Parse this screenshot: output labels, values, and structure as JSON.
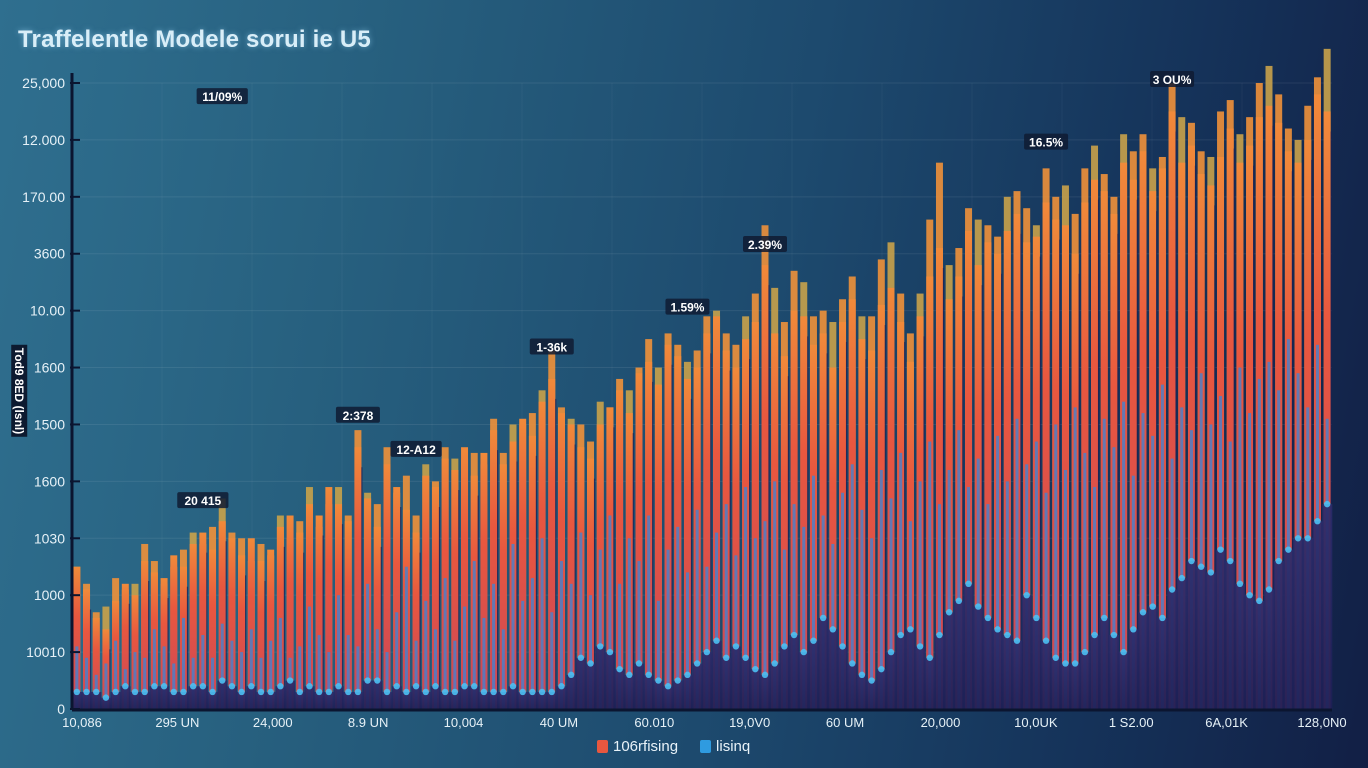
{
  "chart_data": {
    "type": "bar",
    "title": "Traffelentle Modele sorui ie U5",
    "xlabel": "",
    "ylabel": "Tod9 8ED (lsnl)",
    "y_tick_labels": [
      "0",
      "10010",
      "1000",
      "1030",
      "1600",
      "1500",
      "1600",
      "10.00",
      "3600",
      "170.00",
      "12.000",
      "25,000"
    ],
    "ylim": [
      0,
      11
    ],
    "x_tick_labels": [
      "10,086",
      "295 UN",
      "24,000",
      "8.9 UN",
      "10,004",
      "40 UM",
      "60.010",
      "19,0V0",
      "60 UM",
      "20,000",
      "10,0UK",
      "1 S2.00",
      "6A,01K",
      "128,0N0"
    ],
    "grid": true,
    "legend": {
      "position": "bottom-center",
      "entries": [
        {
          "label": "106rfising",
          "color": "#e8573f"
        },
        {
          "label": "lisinq",
          "color": "#2f9be0"
        }
      ]
    },
    "annotations": [
      {
        "text": "11/09%",
        "x_index": 15,
        "y": 10.7
      },
      {
        "text": "20 415",
        "x_index": 13,
        "y": 3.6
      },
      {
        "text": "2:378",
        "x_index": 29,
        "y": 5.1
      },
      {
        "text": "12-A12",
        "x_index": 35,
        "y": 4.5
      },
      {
        "text": "1-36k",
        "x_index": 49,
        "y": 6.3
      },
      {
        "text": "1.59%",
        "x_index": 63,
        "y": 7.0
      },
      {
        "text": "2.39%",
        "x_index": 71,
        "y": 8.1
      },
      {
        "text": "16.5%",
        "x_index": 100,
        "y": 9.9
      },
      {
        "text": "3 OU%",
        "x_index": 113,
        "y": 11.0
      }
    ],
    "series": [
      {
        "name": "106rfising",
        "color": "#e8573f",
        "values": [
          2.5,
          2.1,
          1.6,
          1.4,
          1.9,
          2.2,
          2.0,
          2.6,
          2.4,
          2.3,
          2.7,
          2.5,
          2.9,
          3.1,
          2.8,
          3.3,
          3.0,
          2.7,
          3.0,
          2.6,
          2.8,
          3.2,
          3.4,
          3.1,
          3.6,
          3.4,
          3.9,
          3.6,
          3.3,
          4.6,
          3.7,
          3.2,
          4.3,
          3.9,
          3.5,
          3.1,
          4.1,
          3.9,
          4.4,
          4.2,
          4.6,
          4.1,
          4.5,
          4.9,
          4.3,
          4.7,
          5.1,
          4.8,
          5.4,
          5.8,
          5.2,
          5.0,
          4.6,
          4.4,
          5.0,
          5.3,
          5.6,
          5.2,
          5.9,
          6.1,
          5.7,
          6.4,
          6.2,
          5.8,
          6.0,
          6.6,
          6.9,
          6.3,
          6.0,
          6.5,
          6.8,
          7.8,
          6.6,
          6.2,
          7.0,
          6.9,
          6.4,
          6.6,
          6.0,
          6.8,
          7.2,
          6.5,
          6.3,
          7.1,
          7.4,
          6.8,
          6.1,
          6.9,
          7.6,
          8.1,
          7.2,
          7.6,
          8.4,
          7.8,
          8.2,
          8.0,
          8.4,
          8.7,
          8.2,
          8.3,
          8.9,
          8.6,
          8.5,
          8.0,
          8.9,
          9.3,
          9.1,
          8.7,
          9.6,
          9.3,
          9.8,
          9.1,
          9.5,
          10.5,
          9.6,
          9.9,
          9.4,
          9.2,
          9.7,
          10.2,
          9.6,
          9.9,
          10.4,
          10.6,
          10.3,
          9.8,
          9.6,
          10.0,
          10.8,
          10.5
        ],
        "highlight_values": [
          2.5,
          2.2,
          1.7,
          1.8,
          2.3,
          2.1,
          2.2,
          2.9,
          2.6,
          2.2,
          2.5,
          2.8,
          3.1,
          2.9,
          3.2,
          3.7,
          3.1,
          3.0,
          2.6,
          2.9,
          2.7,
          3.4,
          3.0,
          3.3,
          3.9,
          3.2,
          3.6,
          3.9,
          3.4,
          4.9,
          3.8,
          3.6,
          4.6,
          3.8,
          4.1,
          3.4,
          4.3,
          4.0,
          4.6,
          4.4,
          4.4,
          4.5,
          4.3,
          5.1,
          4.5,
          5.0,
          5.0,
          5.2,
          5.6,
          6.3,
          5.3,
          5.1,
          5.0,
          4.7,
          5.4,
          5.3,
          5.8,
          5.6,
          6.0,
          6.5,
          6.0,
          6.6,
          6.4,
          6.1,
          6.3,
          6.9,
          7.0,
          6.6,
          6.4,
          6.9,
          7.3,
          8.5,
          7.4,
          6.8,
          7.7,
          7.5,
          6.9,
          7.0,
          6.8,
          7.2,
          7.6,
          6.9,
          6.9,
          7.9,
          8.2,
          7.3,
          6.6,
          7.3,
          8.6,
          9.6,
          7.8,
          8.1,
          8.8,
          8.6,
          8.5,
          8.3,
          9.0,
          9.1,
          8.8,
          8.5,
          9.5,
          9.0,
          9.2,
          8.7,
          9.5,
          9.9,
          9.4,
          9.0,
          10.1,
          9.8,
          10.1,
          9.5,
          9.7,
          11.0,
          10.4,
          10.3,
          9.8,
          9.7,
          10.5,
          10.7,
          10.1,
          10.4,
          11.0,
          11.3,
          10.8,
          10.2,
          10.0,
          10.6,
          11.1,
          11.6
        ]
      },
      {
        "name": "lisinq",
        "color": "#2f9be0",
        "values": [
          0.3,
          0.3,
          0.3,
          0.2,
          0.3,
          0.4,
          0.3,
          0.3,
          0.4,
          0.4,
          0.3,
          0.3,
          0.4,
          0.4,
          0.3,
          0.5,
          0.4,
          0.3,
          0.4,
          0.3,
          0.3,
          0.4,
          0.5,
          0.3,
          0.4,
          0.3,
          0.3,
          0.4,
          0.3,
          0.3,
          0.5,
          0.5,
          0.3,
          0.4,
          0.3,
          0.4,
          0.3,
          0.4,
          0.3,
          0.3,
          0.4,
          0.4,
          0.3,
          0.3,
          0.3,
          0.4,
          0.3,
          0.3,
          0.3,
          0.3,
          0.4,
          0.6,
          0.9,
          0.8,
          1.1,
          1.0,
          0.7,
          0.6,
          0.8,
          0.6,
          0.5,
          0.4,
          0.5,
          0.6,
          0.8,
          1.0,
          1.2,
          0.9,
          1.1,
          0.9,
          0.7,
          0.6,
          0.8,
          1.1,
          1.3,
          1.0,
          1.2,
          1.6,
          1.4,
          1.1,
          0.8,
          0.6,
          0.5,
          0.7,
          1.0,
          1.3,
          1.4,
          1.1,
          0.9,
          1.3,
          1.7,
          1.9,
          2.2,
          1.8,
          1.6,
          1.4,
          1.3,
          1.2,
          2.0,
          1.6,
          1.2,
          0.9,
          0.8,
          0.8,
          1.0,
          1.3,
          1.6,
          1.3,
          1.0,
          1.4,
          1.7,
          1.8,
          1.6,
          2.1,
          2.3,
          2.6,
          2.5,
          2.4,
          2.8,
          2.6,
          2.2,
          2.0,
          1.9,
          2.1,
          2.6,
          2.8,
          3.0,
          3.0,
          3.3,
          3.6
        ],
        "spike_values": [
          1.1,
          0.9,
          0.6,
          0.8,
          1.2,
          0.7,
          1.0,
          0.9,
          1.4,
          1.1,
          0.8,
          1.6,
          0.9,
          1.3,
          0.9,
          1.5,
          1.2,
          1.0,
          1.4,
          0.9,
          1.2,
          1.6,
          0.9,
          1.1,
          1.8,
          1.3,
          1.0,
          2.0,
          1.3,
          1.1,
          2.2,
          1.4,
          1.0,
          1.7,
          2.5,
          1.2,
          1.9,
          1.4,
          2.3,
          1.2,
          1.8,
          2.6,
          1.6,
          2.2,
          1.4,
          2.9,
          1.9,
          2.3,
          3.0,
          1.7,
          2.6,
          2.2,
          3.1,
          2.0,
          2.8,
          3.4,
          2.2,
          3.0,
          2.6,
          3.4,
          1.9,
          2.8,
          3.2,
          2.4,
          3.5,
          2.5,
          3.1,
          3.6,
          2.7,
          3.9,
          3.0,
          3.3,
          4.0,
          2.8,
          3.6,
          3.2,
          4.1,
          3.4,
          2.9,
          3.8,
          4.3,
          3.5,
          3.0,
          4.2,
          3.7,
          4.5,
          3.3,
          4.0,
          4.7,
          3.6,
          4.2,
          4.9,
          3.9,
          4.4,
          3.6,
          4.8,
          4.0,
          5.1,
          4.3,
          4.7,
          3.8,
          5.0,
          4.2,
          5.3,
          4.5,
          3.9,
          5.1,
          4.6,
          5.4,
          4.1,
          5.2,
          4.8,
          5.7,
          4.4,
          5.3,
          4.9,
          5.9,
          5.0,
          5.5,
          4.7,
          6.0,
          5.2,
          5.8,
          6.1,
          5.6,
          6.5,
          5.9,
          5.3,
          6.4,
          5.1
        ]
      }
    ]
  }
}
